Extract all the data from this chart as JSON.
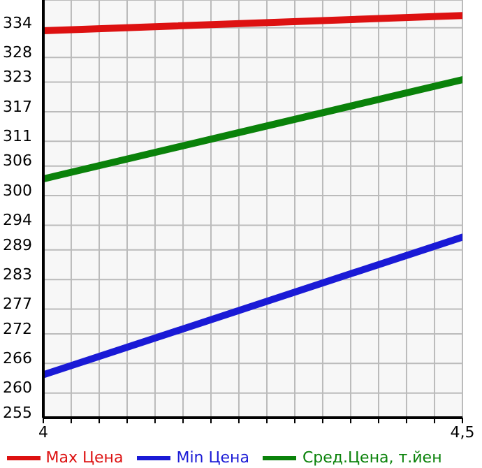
{
  "chart_data": {
    "type": "line",
    "x": [
      4,
      4.5
    ],
    "series": [
      {
        "name": "Max Цена",
        "color": "#dd1111",
        "values": [
          333.4,
          336.5
        ]
      },
      {
        "name": "Min Цена",
        "color": "#1a1ad6",
        "values": [
          263.7,
          291.6
        ]
      },
      {
        "name": "Сред.Цена, т.йен",
        "color": "#0a820a",
        "values": [
          303.4,
          323.5
        ]
      }
    ],
    "xlim": [
      4,
      4.5
    ],
    "xticks": [
      4,
      {
        "value": 4.0333,
        "label": null
      },
      {
        "value": 4.0667,
        "label": null
      },
      {
        "value": 4.1,
        "label": null
      },
      {
        "value": 4.1333,
        "label": null
      },
      {
        "value": 4.1667,
        "label": null
      },
      {
        "value": 4.2,
        "label": null
      },
      {
        "value": 4.2333,
        "label": null
      },
      {
        "value": 4.2667,
        "label": null
      },
      {
        "value": 4.3,
        "label": null
      },
      {
        "value": 4.3333,
        "label": null
      },
      {
        "value": 4.3667,
        "label": null
      },
      {
        "value": 4.4,
        "label": null
      },
      {
        "value": 4.4333,
        "label": null
      },
      {
        "value": 4.4667,
        "label": null
      },
      {
        "value": 4.5,
        "label": "4,5"
      }
    ],
    "ylim": [
      255,
      339.64
    ],
    "yticks": [
      255,
      260,
      266,
      272,
      277,
      283,
      289,
      294,
      300,
      306,
      311,
      317,
      323,
      328,
      334
    ],
    "grid": true,
    "legend": "bottom",
    "marker": "none",
    "line_style": "solid"
  }
}
